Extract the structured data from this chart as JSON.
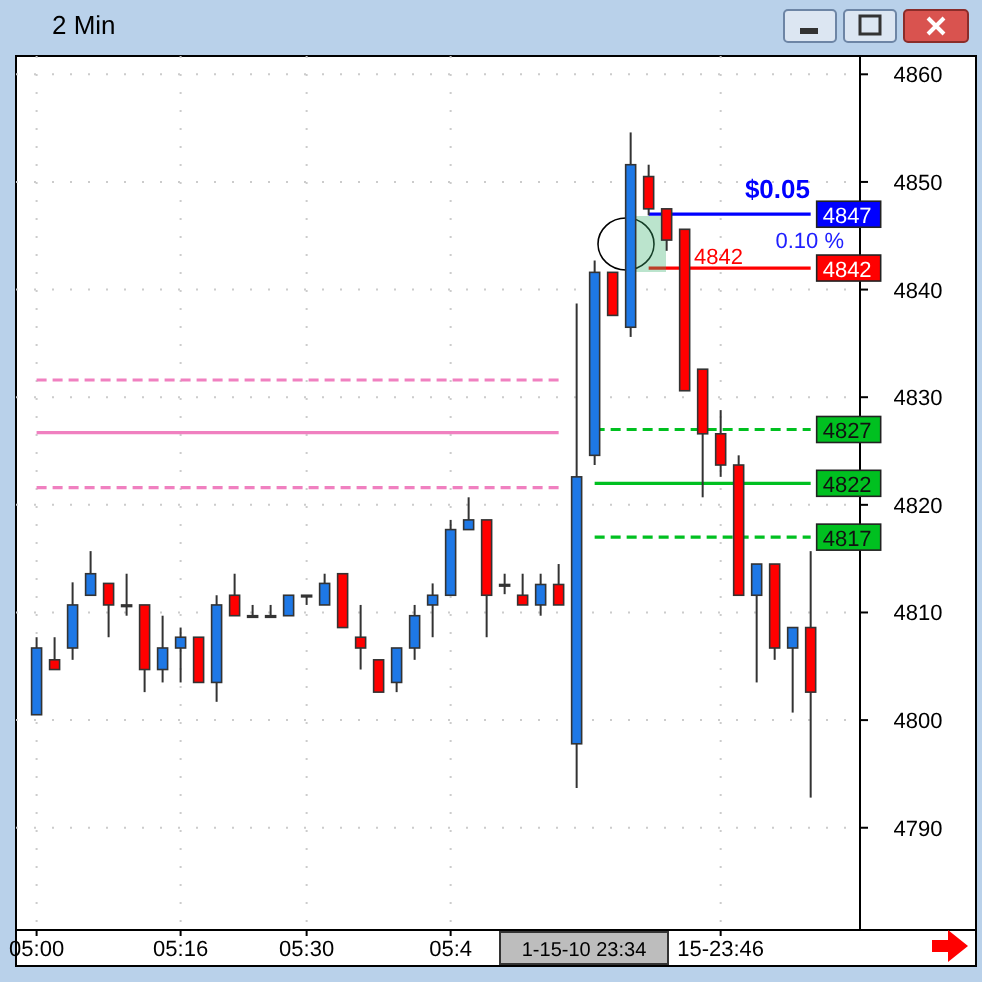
{
  "chart_data": {
    "type": "candlestick",
    "title": "2 Min",
    "categories": [
      "05:00",
      null,
      null,
      null,
      null,
      null,
      null,
      null,
      "05:16",
      null,
      null,
      null,
      null,
      null,
      null,
      "05:30",
      null,
      null,
      null,
      null,
      null,
      null,
      null,
      "05:4",
      null,
      null,
      null,
      null,
      null,
      null,
      null,
      null,
      null,
      null,
      null,
      null,
      null,
      null,
      "15-23:46",
      null,
      null,
      null,
      null,
      null
    ],
    "ohlc": [
      [
        4800.5,
        4807.7,
        4800.5,
        4806.7
      ],
      [
        4805.6,
        4807.7,
        4804.7,
        4804.7
      ],
      [
        4806.7,
        4812.8,
        4805.6,
        4810.7
      ],
      [
        4811.6,
        4815.7,
        4811.6,
        4813.6
      ],
      [
        4812.7,
        4812.7,
        4807.7,
        4810.7
      ],
      [
        4810.7,
        4813.6,
        4809.7,
        4810.7
      ],
      [
        4810.7,
        4810.7,
        4802.6,
        4804.7
      ],
      [
        4804.7,
        4809.7,
        4803.5,
        4806.7
      ],
      [
        4806.7,
        4808.6,
        4803.5,
        4807.7
      ],
      [
        4807.7,
        4807.7,
        4803.5,
        4803.5
      ],
      [
        4803.5,
        4811.6,
        4801.7,
        4810.7
      ],
      [
        4811.6,
        4813.6,
        4809.7,
        4809.7
      ],
      [
        4809.7,
        4810.7,
        4809.7,
        4809.7
      ],
      [
        4809.7,
        4810.7,
        4809.7,
        4809.7
      ],
      [
        4809.7,
        4811.6,
        4809.7,
        4811.6
      ],
      [
        4811.6,
        4811.6,
        4810.7,
        4811.6
      ],
      [
        4810.7,
        4813.6,
        4810.7,
        4812.7
      ],
      [
        4813.6,
        4813.6,
        4808.6,
        4808.6
      ],
      [
        4807.7,
        4810.7,
        4804.7,
        4806.7
      ],
      [
        4805.6,
        4805.6,
        4802.6,
        4802.6
      ],
      [
        4803.5,
        4806.7,
        4802.6,
        4806.7
      ],
      [
        4806.7,
        4810.7,
        4805.6,
        4809.7
      ],
      [
        4810.7,
        4812.7,
        4807.7,
        4811.6
      ],
      [
        4811.6,
        4818.6,
        4811.6,
        4817.7
      ],
      [
        4817.7,
        4820.7,
        4817.7,
        4818.6
      ],
      [
        4818.6,
        4818.6,
        4807.7,
        4811.6
      ],
      [
        4812.6,
        4813.6,
        4811.7,
        4812.6
      ],
      [
        4811.6,
        4813.6,
        4810.7,
        4810.7
      ],
      [
        4810.7,
        4813.6,
        4809.7,
        4812.6
      ],
      [
        4812.6,
        4814.5,
        4810.7,
        4810.7
      ],
      [
        4797.8,
        4838.7,
        4793.7,
        4822.6
      ],
      [
        4824.6,
        4842.7,
        4823.7,
        4841.6
      ],
      [
        4841.6,
        4841.6,
        4837.6,
        4837.6
      ],
      [
        4836.5,
        4854.6,
        4835.6,
        4851.6
      ],
      [
        4850.5,
        4851.6,
        4846.9,
        4847.5
      ],
      [
        4847.5,
        4847.5,
        4843.6,
        4844.6
      ],
      [
        4845.6,
        4845.6,
        4830.6,
        4830.6
      ],
      [
        4832.6,
        4832.6,
        4820.7,
        4826.6
      ],
      [
        4826.6,
        4828.8,
        4822.6,
        4823.7
      ],
      [
        4823.7,
        4824.6,
        4811.6,
        4811.6
      ],
      [
        4811.6,
        4814.5,
        4803.5,
        4814.5
      ],
      [
        4814.5,
        4814.5,
        4805.6,
        4806.7
      ],
      [
        4806.7,
        4808.6,
        4800.7,
        4808.6
      ],
      [
        4808.6,
        4815.7,
        4792.8,
        4802.6
      ]
    ],
    "colors": [
      "#1e78e6",
      "#ff0000",
      "#1e78e6",
      "#1e78e6",
      "#ff0000",
      "#ff0000",
      "#ff0000",
      "#1e78e6",
      "#1e78e6",
      "#ff0000",
      "#1e78e6",
      "#ff0000",
      "#ff0000",
      "#ff0000",
      "#1e78e6",
      "#1e78e6",
      "#1e78e6",
      "#ff0000",
      "#ff0000",
      "#ff0000",
      "#1e78e6",
      "#1e78e6",
      "#1e78e6",
      "#1e78e6",
      "#1e78e6",
      "#ff0000",
      "#ff0000",
      "#ff0000",
      "#1e78e6",
      "#ff0000",
      "#1e78e6",
      "#1e78e6",
      "#ff0000",
      "#1e78e6",
      "#ff0000",
      "#ff0000",
      "#ff0000",
      "#ff0000",
      "#ff0000",
      "#ff0000",
      "#1e78e6",
      "#ff0000",
      "#1e78e6",
      "#ff0000"
    ],
    "series": [
      {
        "type": "line",
        "color": "#f080c0",
        "line_style": "solid",
        "values": [
          4826.7,
          4826.7,
          4826.7,
          4826.7,
          4826.7,
          4826.7,
          4826.7,
          4826.7,
          4826.7,
          4826.7,
          4826.7,
          4826.7,
          4826.7,
          4826.7,
          4826.7,
          4826.7,
          4826.7,
          4826.7,
          4826.7,
          4826.7,
          4826.7,
          4826.7,
          4826.7,
          4826.7,
          4826.7,
          4826.7,
          4826.7,
          4826.7,
          4826.7,
          4826.7,
          null,
          null,
          null,
          null,
          null,
          null,
          null,
          null,
          null,
          null,
          null,
          null,
          null,
          null
        ]
      },
      {
        "type": "line",
        "color": "#f080c0",
        "line_style": "dashed",
        "values": [
          4831.6,
          4831.6,
          4831.6,
          4831.6,
          4831.6,
          4831.6,
          4831.6,
          4831.6,
          4831.6,
          4831.6,
          4831.6,
          4831.6,
          4831.6,
          4831.6,
          4831.6,
          4831.6,
          4831.6,
          4831.6,
          4831.6,
          4831.6,
          4831.6,
          4831.6,
          4831.6,
          4831.6,
          4831.6,
          4831.6,
          4831.6,
          4831.6,
          4831.6,
          4831.6,
          null,
          null,
          null,
          null,
          null,
          null,
          null,
          null,
          null,
          null,
          null,
          null,
          null,
          null
        ]
      },
      {
        "type": "line",
        "color": "#f080c0",
        "line_style": "dashed",
        "values": [
          4821.6,
          4821.6,
          4821.6,
          4821.6,
          4821.6,
          4821.6,
          4821.6,
          4821.6,
          4821.6,
          4821.6,
          4821.6,
          4821.6,
          4821.6,
          4821.6,
          4821.6,
          4821.6,
          4821.6,
          4821.6,
          4821.6,
          4821.6,
          4821.6,
          4821.6,
          4821.6,
          4821.6,
          4821.6,
          4821.6,
          4821.6,
          4821.6,
          4821.6,
          4821.6,
          null,
          null,
          null,
          null,
          null,
          null,
          null,
          null,
          null,
          null,
          null,
          null,
          null,
          null
        ]
      },
      {
        "type": "line",
        "color": "#00c020",
        "line_style": "dashed",
        "values": [
          null,
          null,
          null,
          null,
          null,
          null,
          null,
          null,
          null,
          null,
          null,
          null,
          null,
          null,
          null,
          null,
          null,
          null,
          null,
          null,
          null,
          null,
          null,
          null,
          null,
          null,
          null,
          null,
          null,
          null,
          null,
          4827,
          4827,
          4827,
          4827,
          4827,
          4827,
          4827,
          4827,
          4827,
          4827,
          4827,
          4827,
          4827
        ],
        "value_labels": [
          null,
          null,
          null,
          null,
          null,
          null,
          null,
          null,
          null,
          null,
          null,
          null,
          null,
          null,
          null,
          null,
          null,
          null,
          null,
          null,
          null,
          null,
          null,
          null,
          null,
          null,
          null,
          null,
          null,
          null,
          null,
          null,
          null,
          null,
          null,
          null,
          null,
          null,
          null,
          null,
          null,
          null,
          null,
          "4827"
        ]
      },
      {
        "type": "line",
        "color": "#00c020",
        "line_style": "solid",
        "values": [
          null,
          null,
          null,
          null,
          null,
          null,
          null,
          null,
          null,
          null,
          null,
          null,
          null,
          null,
          null,
          null,
          null,
          null,
          null,
          null,
          null,
          null,
          null,
          null,
          null,
          null,
          null,
          null,
          null,
          null,
          null,
          4822,
          4822,
          4822,
          4822,
          4822,
          4822,
          4822,
          4822,
          4822,
          4822,
          4822,
          4822,
          4822
        ],
        "value_labels": [
          null,
          null,
          null,
          null,
          null,
          null,
          null,
          null,
          null,
          null,
          null,
          null,
          null,
          null,
          null,
          null,
          null,
          null,
          null,
          null,
          null,
          null,
          null,
          null,
          null,
          null,
          null,
          null,
          null,
          null,
          null,
          null,
          null,
          null,
          null,
          null,
          null,
          null,
          null,
          null,
          null,
          null,
          null,
          "4822"
        ]
      },
      {
        "type": "line",
        "color": "#00c020",
        "line_style": "dashed",
        "values": [
          null,
          null,
          null,
          null,
          null,
          null,
          null,
          null,
          null,
          null,
          null,
          null,
          null,
          null,
          null,
          null,
          null,
          null,
          null,
          null,
          null,
          null,
          null,
          null,
          null,
          null,
          null,
          null,
          null,
          null,
          null,
          4817,
          4817,
          4817,
          4817,
          4817,
          4817,
          4817,
          4817,
          4817,
          4817,
          4817,
          4817,
          4817
        ],
        "value_labels": [
          null,
          null,
          null,
          null,
          null,
          null,
          null,
          null,
          null,
          null,
          null,
          null,
          null,
          null,
          null,
          null,
          null,
          null,
          null,
          null,
          null,
          null,
          null,
          null,
          null,
          null,
          null,
          null,
          null,
          null,
          null,
          null,
          null,
          null,
          null,
          null,
          null,
          null,
          null,
          null,
          null,
          null,
          null,
          "4817"
        ]
      },
      {
        "type": "line",
        "color": "#0000ff",
        "line_style": "solid",
        "values": [
          null,
          null,
          null,
          null,
          null,
          null,
          null,
          null,
          null,
          null,
          null,
          null,
          null,
          null,
          null,
          null,
          null,
          null,
          null,
          null,
          null,
          null,
          null,
          null,
          null,
          null,
          null,
          null,
          null,
          null,
          null,
          null,
          null,
          null,
          4847,
          4847,
          4847,
          4847,
          4847,
          4847,
          4847,
          4847,
          4847,
          4847
        ],
        "value_labels": [
          null,
          null,
          null,
          null,
          null,
          null,
          null,
          null,
          null,
          null,
          null,
          null,
          null,
          null,
          null,
          null,
          null,
          null,
          null,
          null,
          null,
          null,
          null,
          null,
          null,
          null,
          null,
          null,
          null,
          null,
          null,
          null,
          null,
          null,
          null,
          null,
          null,
          null,
          null,
          null,
          null,
          null,
          null,
          "4847"
        ]
      },
      {
        "type": "line",
        "color": "#ff0000",
        "line_style": "solid",
        "values": [
          null,
          null,
          null,
          null,
          null,
          null,
          null,
          null,
          null,
          null,
          null,
          null,
          null,
          null,
          null,
          null,
          null,
          null,
          null,
          null,
          null,
          null,
          null,
          null,
          null,
          null,
          null,
          null,
          null,
          null,
          null,
          null,
          null,
          null,
          4842,
          4842,
          4842,
          4842,
          4842,
          4842,
          4842,
          4842,
          4842,
          4842
        ],
        "value_labels": [
          null,
          null,
          null,
          null,
          null,
          null,
          null,
          null,
          null,
          null,
          null,
          null,
          null,
          null,
          null,
          null,
          null,
          null,
          null,
          null,
          null,
          null,
          null,
          null,
          null,
          null,
          null,
          null,
          null,
          null,
          null,
          null,
          null,
          null,
          null,
          null,
          null,
          null,
          null,
          null,
          null,
          null,
          null,
          "4842"
        ]
      }
    ],
    "ylim": [
      4780.5,
      4861.7
    ],
    "yticks": [
      4790,
      4800,
      4810,
      4820,
      4830,
      4840,
      4850,
      4860
    ],
    "grid": true,
    "annotations": [
      "$0.05",
      "0.10 %",
      "4842",
      "1-15-10  23:34"
    ]
  }
}
